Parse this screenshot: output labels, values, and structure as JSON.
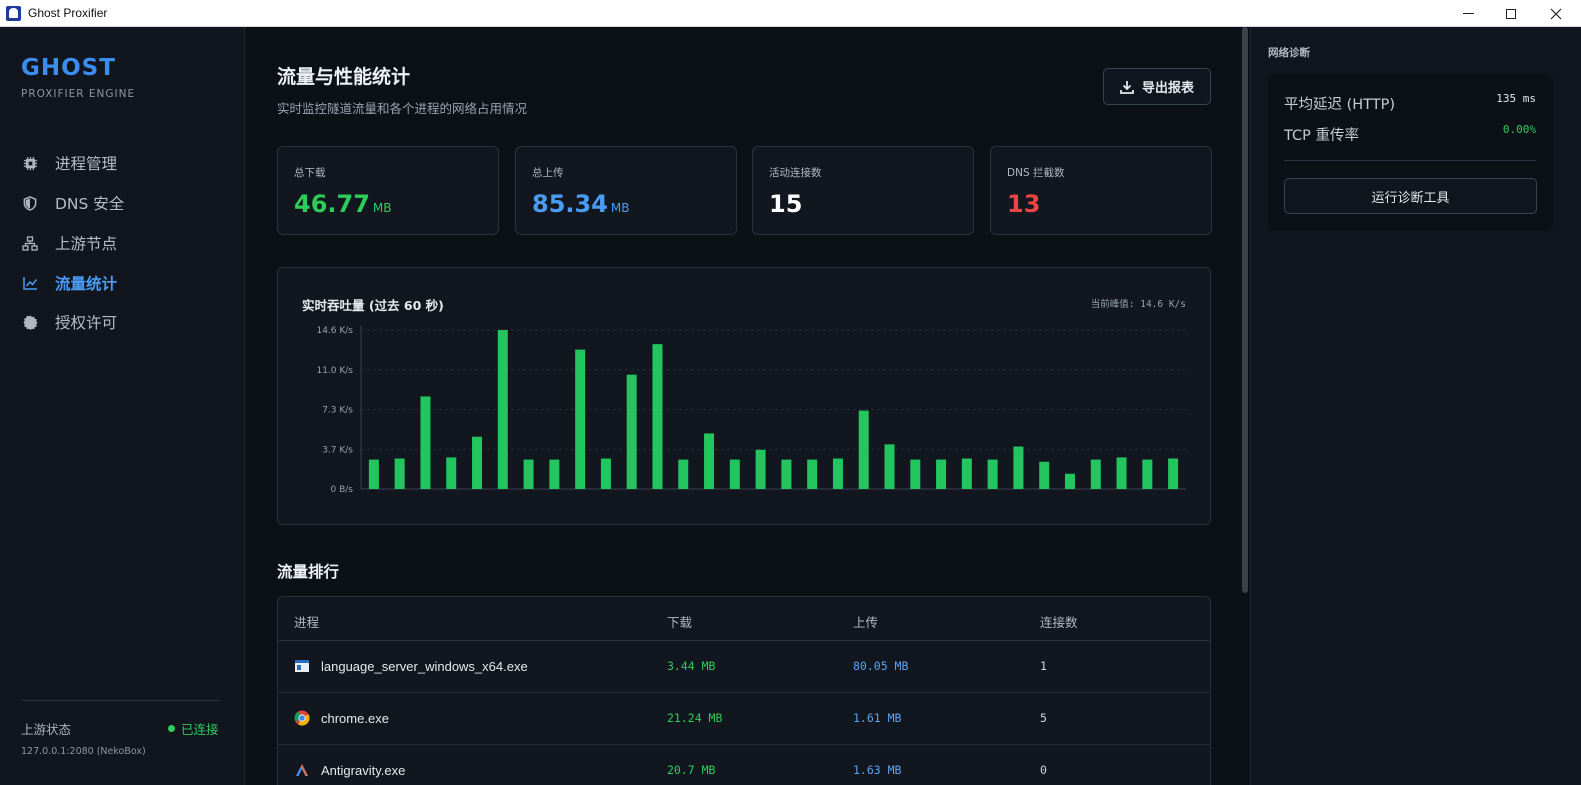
{
  "window": {
    "title": "Ghost Proxifier"
  },
  "sidebar": {
    "brand": "GHOST",
    "brand_sub": "PROXIFIER ENGINE",
    "items": [
      {
        "label": "进程管理",
        "icon": "cpu-icon",
        "active": false
      },
      {
        "label": "DNS 安全",
        "icon": "shield-icon",
        "active": false
      },
      {
        "label": "上游节点",
        "icon": "network-icon",
        "active": false
      },
      {
        "label": "流量统计",
        "icon": "chart-line-icon",
        "active": true
      },
      {
        "label": "授权许可",
        "icon": "badge-icon",
        "active": false
      }
    ],
    "upstream_label": "上游状态",
    "upstream_status": "已连接",
    "upstream_addr": "127.0.0.1:2080 (NekoBox)"
  },
  "main": {
    "title": "流量与性能统计",
    "subtitle": "实时监控隧道流量和各个进程的网络占用情况",
    "export_label": "导出报表",
    "stats": [
      {
        "label": "总下载",
        "value": "46.77",
        "unit": "MB",
        "color": "#2ecc5b"
      },
      {
        "label": "总上传",
        "value": "85.34",
        "unit": "MB",
        "color": "#4a9cf5"
      },
      {
        "label": "活动连接数",
        "value": "15",
        "unit": "",
        "color": "#ffffff"
      },
      {
        "label": "DNS 拦截数",
        "value": "13",
        "unit": "",
        "color": "#ef4444"
      }
    ],
    "chart_title": "实时吞吐量 (过去 60 秒)",
    "chart_peak": "当前峰值: 14.6 K/s",
    "ranking_title": "流量排行",
    "table": {
      "headers": [
        "进程",
        "下载",
        "上传",
        "连接数"
      ],
      "rows": [
        {
          "name": "language_server_windows_x64.exe",
          "icon": "app-window-icon",
          "down": "3.44  MB",
          "up": "80.05  MB",
          "conn": "1"
        },
        {
          "name": "chrome.exe",
          "icon": "chrome-icon",
          "down": "21.24  MB",
          "up": "1.61  MB",
          "conn": "5"
        },
        {
          "name": "Antigravity.exe",
          "icon": "antigravity-icon",
          "down": "20.7  MB",
          "up": "1.63  MB",
          "conn": "0"
        }
      ]
    }
  },
  "right_panel": {
    "title": "网络诊断",
    "rows": [
      {
        "label": "平均延迟 (HTTP)",
        "value": "135 ms",
        "color": "#e6e9ee"
      },
      {
        "label": "TCP 重传率",
        "value": "0.00%",
        "color": "#2ecc5b"
      }
    ],
    "button_label": "运行诊断工具"
  },
  "chart_data": {
    "type": "bar",
    "title": "实时吞吐量 (过去 60 秒)",
    "y_unit": "K/s",
    "y_ticks": [
      "0 B/s",
      "3.7 K/s",
      "7.3 K/s",
      "11.0 K/s",
      "14.6 K/s"
    ],
    "ylim": [
      0,
      14.6
    ],
    "grid": true,
    "bar_color": "#22c55e",
    "values": [
      2.7,
      2.8,
      8.5,
      2.9,
      4.8,
      14.6,
      2.7,
      2.7,
      12.8,
      2.8,
      10.5,
      13.3,
      2.7,
      5.1,
      2.7,
      3.6,
      2.7,
      2.7,
      2.8,
      7.2,
      4.1,
      2.7,
      2.7,
      2.8,
      2.7,
      3.9,
      2.5,
      1.4,
      2.7,
      2.9,
      2.7,
      2.8
    ]
  }
}
